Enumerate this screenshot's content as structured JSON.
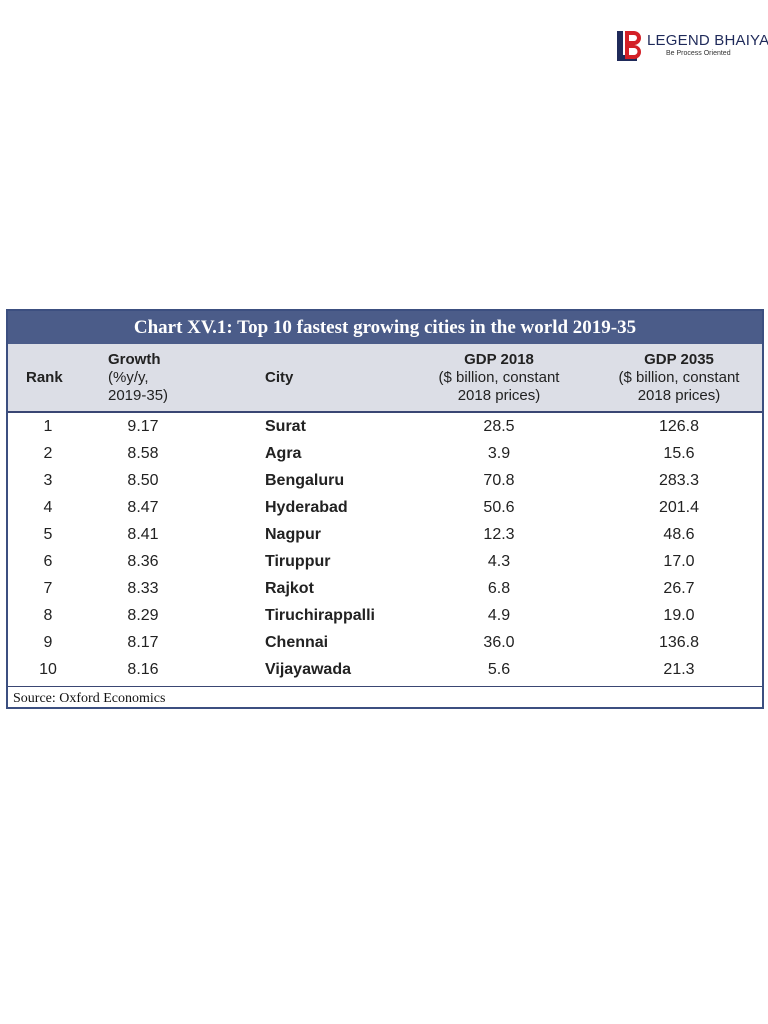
{
  "logo": {
    "title": "LEGEND BHAIYA",
    "tagline": "Be Process Oriented",
    "mark_colors": {
      "l": "#1f2a5a",
      "b": "#d32027"
    }
  },
  "table": {
    "title": "Chart XV.1: Top 10 fastest growing cities in the world 2019-35",
    "headers": {
      "rank": "Rank",
      "growth": [
        "Growth",
        "(%y/y,",
        "2019-35)"
      ],
      "city": "City",
      "gdp2018": [
        "GDP 2018",
        "($ billion, constant",
        "2018 prices)"
      ],
      "gdp2035": [
        "GDP 2035",
        "($ billion, constant",
        "2018 prices)"
      ]
    },
    "rows": [
      {
        "rank": "1",
        "growth": "9.17",
        "city": "Surat",
        "gdp2018": "28.5",
        "gdp2035": "126.8"
      },
      {
        "rank": "2",
        "growth": "8.58",
        "city": "Agra",
        "gdp2018": "3.9",
        "gdp2035": "15.6"
      },
      {
        "rank": "3",
        "growth": "8.50",
        "city": "Bengaluru",
        "gdp2018": "70.8",
        "gdp2035": "283.3"
      },
      {
        "rank": "4",
        "growth": "8.47",
        "city": "Hyderabad",
        "gdp2018": "50.6",
        "gdp2035": "201.4"
      },
      {
        "rank": "5",
        "growth": "8.41",
        "city": "Nagpur",
        "gdp2018": "12.3",
        "gdp2035": "48.6"
      },
      {
        "rank": "6",
        "growth": "8.36",
        "city": "Tiruppur",
        "gdp2018": "4.3",
        "gdp2035": "17.0"
      },
      {
        "rank": "7",
        "growth": "8.33",
        "city": "Rajkot",
        "gdp2018": "6.8",
        "gdp2035": "26.7"
      },
      {
        "rank": "8",
        "growth": "8.29",
        "city": "Tiruchirappalli",
        "gdp2018": "4.9",
        "gdp2035": "19.0"
      },
      {
        "rank": "9",
        "growth": "8.17",
        "city": "Chennai",
        "gdp2018": "36.0",
        "gdp2035": "136.8"
      },
      {
        "rank": "10",
        "growth": "8.16",
        "city": "Vijayawada",
        "gdp2018": "5.6",
        "gdp2035": "21.3"
      }
    ],
    "source": "Source: Oxford Economics",
    "colors": {
      "title_bar": "#4b5c89",
      "header_bg": "#dcdee6",
      "border": "#3c4f80"
    }
  }
}
